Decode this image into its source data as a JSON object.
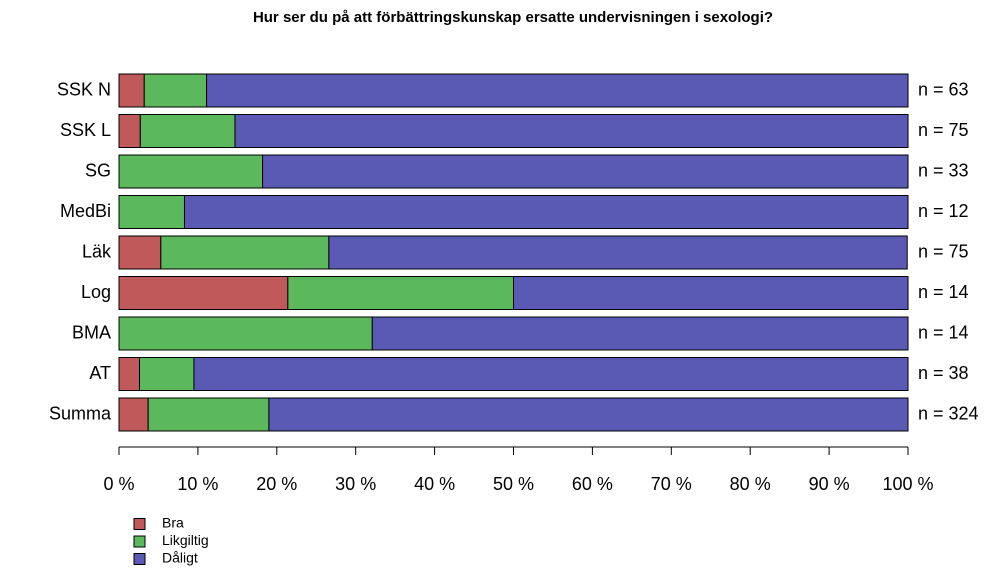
{
  "chart_data": {
    "type": "stacked_barh",
    "title": "Hur ser du på att förbättringskunskap ersatte undervisningen i sexologi?",
    "categories": [
      "SSK N",
      "SSK L",
      "SG",
      "MedBi",
      "Läk",
      "Log",
      "BMA",
      "AT",
      "Summa"
    ],
    "annotations": [
      "n = 63",
      "n = 75",
      "n = 33",
      "n = 12",
      "n = 75",
      "n = 14",
      "n = 14",
      "n = 38",
      "n = 324"
    ],
    "series": [
      {
        "name": "Bra",
        "color": "#c05a5a",
        "values": [
          3.2,
          2.7,
          0,
          0,
          5.3,
          21.4,
          0,
          2.6,
          3.7
        ]
      },
      {
        "name": "Likgiltig",
        "color": "#5cb85c",
        "values": [
          7.9,
          12.0,
          18.2,
          8.3,
          21.3,
          28.6,
          32.1,
          6.9,
          15.3
        ]
      },
      {
        "name": "Dåligt",
        "color": "#5a5ab5",
        "values": [
          88.9,
          85.3,
          81.8,
          91.7,
          73.3,
          50.0,
          67.9,
          90.5,
          81.0
        ]
      }
    ],
    "xlim": [
      0,
      100
    ],
    "xticks": [
      {
        "value": 0,
        "label": "0 %"
      },
      {
        "value": 10,
        "label": "10 %"
      },
      {
        "value": 20,
        "label": "20 %"
      },
      {
        "value": 30,
        "label": "30 %"
      },
      {
        "value": 40,
        "label": "40 %"
      },
      {
        "value": 50,
        "label": "50 %"
      },
      {
        "value": 60,
        "label": "60 %"
      },
      {
        "value": 70,
        "label": "70 %"
      },
      {
        "value": 80,
        "label": "80 %"
      },
      {
        "value": 90,
        "label": "90 %"
      },
      {
        "value": 100,
        "label": "100 %"
      }
    ],
    "legend": "bottom-left"
  }
}
